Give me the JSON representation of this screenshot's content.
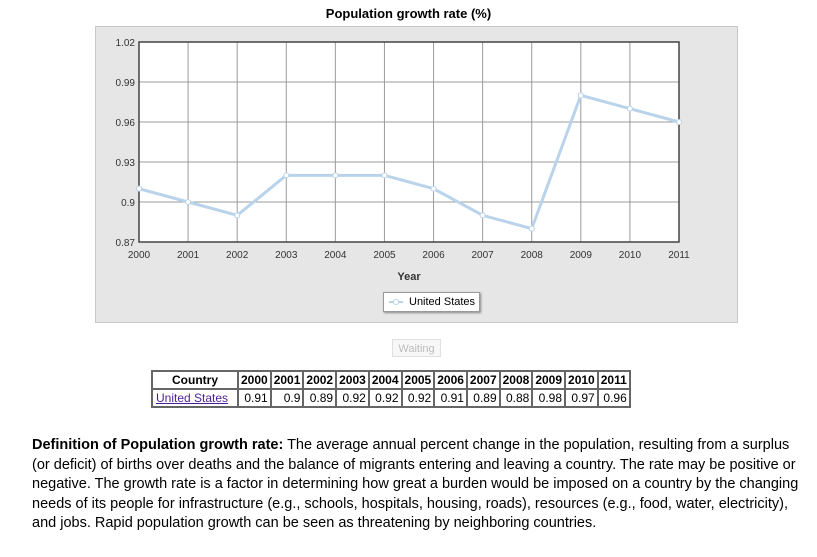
{
  "chart_data": {
    "type": "line",
    "title": "Population growth rate (%)",
    "xlabel": "Year",
    "ylabel": "",
    "x": [
      "2000",
      "2001",
      "2002",
      "2003",
      "2004",
      "2005",
      "2006",
      "2007",
      "2008",
      "2009",
      "2010",
      "2011"
    ],
    "ylim": [
      0.87,
      1.02
    ],
    "y_ticks": [
      "1.02",
      "0.99",
      "0.96",
      "0.93",
      "0.9",
      "0.87"
    ],
    "grid": true,
    "legend_position": "bottom-center",
    "series": [
      {
        "name": "United States",
        "values": [
          0.91,
          0.9,
          0.89,
          0.92,
          0.92,
          0.92,
          0.91,
          0.89,
          0.88,
          0.98,
          0.97,
          0.96
        ]
      }
    ]
  },
  "colors": {
    "line": "#b9d3ea",
    "grid": "#9b9b9b",
    "panel": "#e6e6e6"
  },
  "waiting_label": "Waiting",
  "table": {
    "header": [
      "Country",
      "2000",
      "2001",
      "2002",
      "2003",
      "2004",
      "2005",
      "2006",
      "2007",
      "2008",
      "2009",
      "2010",
      "2011"
    ],
    "row": {
      "country": "United States",
      "values": [
        "0.91",
        "0.9",
        "0.89",
        "0.92",
        "0.92",
        "0.92",
        "0.91",
        "0.89",
        "0.88",
        "0.98",
        "0.97",
        "0.96"
      ]
    }
  },
  "definition": {
    "term": "Definition of Population growth rate:",
    "text": " The average annual percent change in the population, resulting from a surplus (or deficit) of births over deaths and the balance of migrants entering and leaving a country. The rate may be positive or negative. The growth rate is a factor in determining how great a burden would be imposed on a country by the changing needs of its people for infrastructure (e.g., schools, hospitals, housing, roads), resources (e.g., food, water, electricity), and jobs. Rapid population growth can be seen as threatening by neighboring countries."
  }
}
